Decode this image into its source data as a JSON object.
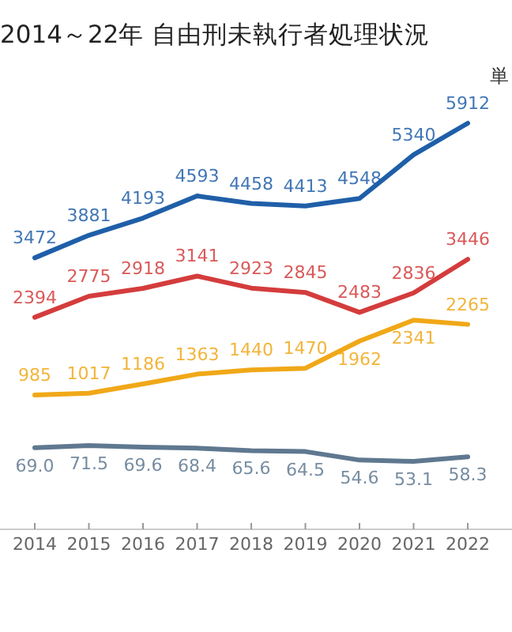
{
  "chart_data": [
    {
      "type": "line",
      "title": "2014～22年 自由刑未執行者処理状況",
      "annotations": [
        "単"
      ],
      "categories": [
        "2014",
        "2015",
        "2016",
        "2017",
        "2018",
        "2019",
        "2020",
        "2021",
        "2022"
      ],
      "tick_labels": false,
      "data_labels": true,
      "series": [
        {
          "color": "#1f5fa8",
          "values": [
            3472,
            3881,
            4193,
            4593,
            4458,
            4413,
            4548,
            5340,
            5912
          ]
        },
        {
          "color": "#d43c3c",
          "values": [
            2394,
            2775,
            2918,
            3141,
            2923,
            2845,
            2483,
            2836,
            3446
          ]
        },
        {
          "color": "#f0a818",
          "values": [
            985,
            1017,
            1186,
            1363,
            1440,
            1470,
            1962,
            2341,
            2265
          ]
        }
      ]
    },
    {
      "type": "line",
      "categories": [
        "2014",
        "2015",
        "2016",
        "2017",
        "2018",
        "2019",
        "2020",
        "2021",
        "2022"
      ],
      "tick_labels": "x",
      "data_labels": true,
      "series": [
        {
          "color": "#5f7890",
          "values": [
            69.0,
            71.5,
            69.6,
            68.4,
            65.6,
            64.5,
            54.6,
            53.1,
            58.3
          ],
          "value_labels": [
            "69.0",
            "71.5",
            "69.6",
            "68.4",
            "65.6",
            "64.5",
            "54.6",
            "53.1",
            "58.3"
          ]
        }
      ]
    }
  ]
}
